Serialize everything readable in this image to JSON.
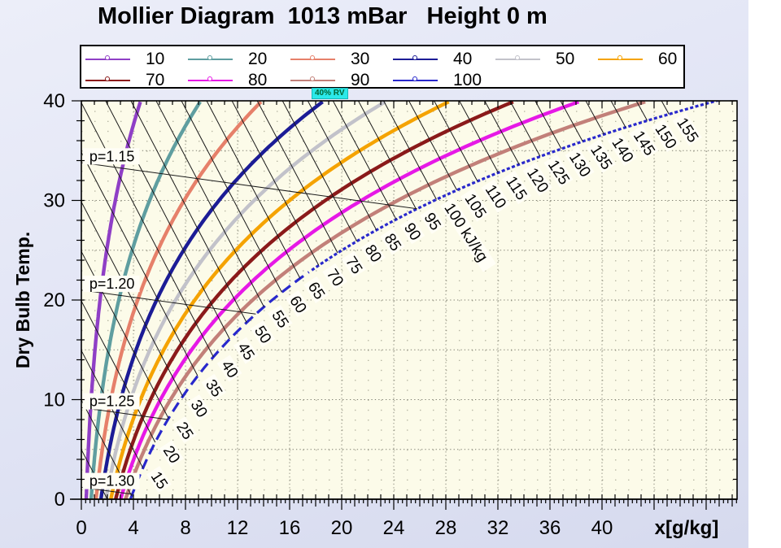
{
  "title": "Mollier Diagram  1013 mBar   Height 0 m",
  "annotation": {
    "text": "40% RV",
    "bg_color": "#2be9e9",
    "marks_curve_rh": 40
  },
  "legend": {
    "entries": [
      {
        "label": "10",
        "color": "#8f3fc6"
      },
      {
        "label": "20",
        "color": "#5f9ea0"
      },
      {
        "label": "30",
        "color": "#e6806a"
      },
      {
        "label": "40",
        "color": "#1c1c96"
      },
      {
        "label": "50",
        "color": "#c2c2ca"
      },
      {
        "label": "60",
        "color": "#f5a302"
      },
      {
        "label": "70",
        "color": "#8b1a1a"
      },
      {
        "label": "80",
        "color": "#e619e6"
      },
      {
        "label": "90",
        "color": "#c28079"
      },
      {
        "label": "100",
        "color": "#2828cc"
      }
    ]
  },
  "chart_data": {
    "type": "line",
    "title": "Mollier Diagram 1013 mBar Height 0 m",
    "pressure_mbar": 1013,
    "height_m": 0,
    "plot_bg": "#fcfbe9",
    "x_axis": {
      "label": "x[g/kg]",
      "min": 0,
      "max": 50.4,
      "major_ticks": [
        0,
        4,
        8,
        12,
        16,
        20,
        24,
        28,
        32,
        36,
        40
      ]
    },
    "y_axis": {
      "label": "Dry Bulb Temp.",
      "min": 0,
      "max": 40.1,
      "major_ticks": [
        0,
        10,
        20,
        30,
        40
      ]
    },
    "rh_curves_percent": [
      10,
      20,
      30,
      40,
      50,
      60,
      70,
      80,
      90,
      100
    ],
    "rh_sample_points": {
      "t_celsius": [
        0,
        10,
        20,
        30,
        40
      ],
      "x_gkg_by_rh": {
        "10": [
          0.38,
          0.75,
          1.44,
          2.6,
          4.52
        ],
        "20": [
          0.75,
          1.51,
          2.88,
          5.23,
          9.1
        ],
        "30": [
          1.13,
          2.27,
          4.33,
          7.87,
          13.75
        ],
        "40": [
          1.5,
          3.03,
          5.78,
          10.54,
          18.48
        ],
        "50": [
          1.88,
          3.79,
          7.24,
          13.23,
          23.26
        ],
        "60": [
          2.26,
          4.55,
          8.71,
          15.94,
          28.12
        ],
        "70": [
          2.64,
          5.31,
          10.19,
          18.68,
          33.06
        ],
        "80": [
          3.02,
          6.08,
          11.67,
          21.45,
          38.07
        ],
        "90": [
          3.4,
          6.85,
          13.16,
          24.23,
          43.17
        ],
        "100": [
          3.78,
          7.62,
          14.66,
          27.04,
          48.33
        ]
      }
    },
    "saturation_model": {
      "psat_hpa": "6.112*exp(17.62*t/(243.12+t))",
      "x_gkg": "622*(rh/100*psat)/(1013-rh/100*psat)"
    },
    "enthalpy_lines": {
      "unit": "kJ/kg",
      "from": 5,
      "to": 155,
      "step": 5,
      "labeled": [
        15,
        20,
        25,
        30,
        35,
        40,
        45,
        50,
        55,
        60,
        65,
        70,
        75,
        80,
        85,
        90,
        95,
        100,
        105,
        110,
        115,
        120,
        125,
        130,
        135,
        140,
        145,
        150,
        155
      ],
      "unit_shown_on": 100,
      "formula": "h = 1.005*t + x*(2.501+0.00186*t)"
    },
    "density_lines": {
      "slope_c_per_gkg": -0.18,
      "lines": [
        {
          "label": "p=1.15",
          "t_at_x0": 33.8
        },
        {
          "label": "p=1.20",
          "t_at_x0": 21.0
        },
        {
          "label": "p=1.25",
          "t_at_x0": 9.2
        },
        {
          "label": "p=1.30",
          "t_at_x0": 1.2
        }
      ]
    },
    "line_color": "#1a1a1a",
    "dashed_curve_rh": 100
  }
}
